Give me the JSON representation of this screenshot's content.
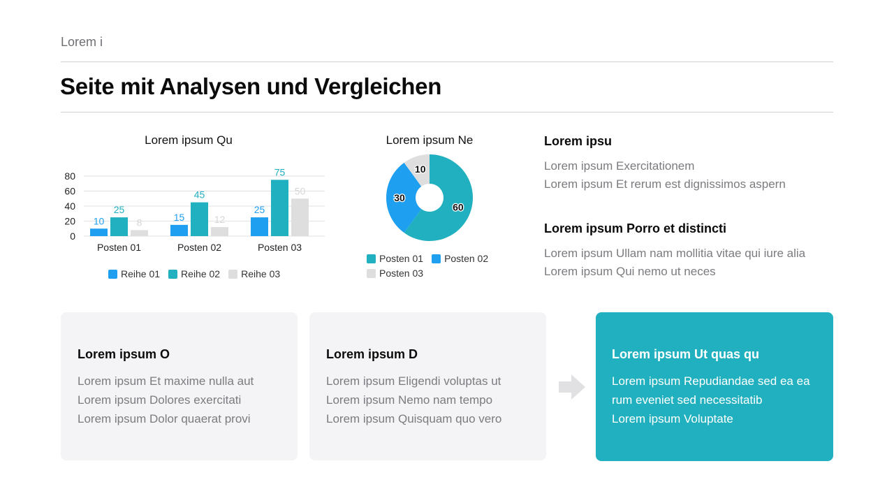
{
  "header": {
    "eyebrow": "Lorem i",
    "title": "Seite mit Analysen und Vergleichen"
  },
  "colors": {
    "series1": "#1e9ff0",
    "series2": "#21b0bf",
    "series3": "#dedede",
    "accent": "#21b0bf"
  },
  "chart_data": [
    {
      "type": "bar",
      "title": "Lorem ipsum Qu",
      "categories": [
        "Posten 01",
        "Posten 02",
        "Posten 03"
      ],
      "yticks": [
        "0",
        "20",
        "40",
        "60",
        "80"
      ],
      "ylim": [
        0,
        80
      ],
      "grid": true,
      "legend_position": "bottom",
      "series": [
        {
          "name": "Reihe 01",
          "values": [
            10,
            15,
            25
          ],
          "color": "#1e9ff0"
        },
        {
          "name": "Reihe 02",
          "values": [
            25,
            45,
            75
          ],
          "color": "#21b0bf"
        },
        {
          "name": "Reihe 03",
          "values": [
            8,
            12,
            50
          ],
          "color": "#dedede"
        }
      ]
    },
    {
      "type": "pie",
      "title": "Lorem ipsum Ne",
      "donut": true,
      "legend_position": "bottom",
      "slices": [
        {
          "name": "Posten 01",
          "value": 60,
          "color": "#21b0bf"
        },
        {
          "name": "Posten 02",
          "value": 30,
          "color": "#1e9ff0"
        },
        {
          "name": "Posten 03",
          "value": 10,
          "color": "#dedede"
        }
      ]
    }
  ],
  "info": [
    {
      "heading": "Lorem ipsu",
      "lines": [
        "Lorem ipsum Exercitationem",
        "Lorem ipsum Et rerum est dignissimos aspern"
      ]
    },
    {
      "heading": "Lorem ipsum Porro et distincti",
      "lines": [
        "Lorem ipsum Ullam nam mollitia vitae qui iure alia",
        "Lorem ipsum Qui nemo ut neces"
      ]
    }
  ],
  "cards": [
    {
      "heading": "Lorem ipsum O",
      "lines": [
        "Lorem ipsum Et maxime nulla aut",
        "Lorem ipsum Dolores exercitati",
        "Lorem ipsum Dolor quaerat provi"
      ]
    },
    {
      "heading": "Lorem ipsum D",
      "lines": [
        "Lorem ipsum Eligendi voluptas ut",
        "Lorem ipsum Nemo nam tempo",
        "Lorem ipsum Quisquam quo vero"
      ]
    },
    {
      "heading": "Lorem ipsum Ut quas qu",
      "lines": [
        "Lorem ipsum Repudiandae sed ea ea",
        "rum eveniet sed necessitatib",
        "Lorem ipsum Voluptate"
      ]
    }
  ]
}
